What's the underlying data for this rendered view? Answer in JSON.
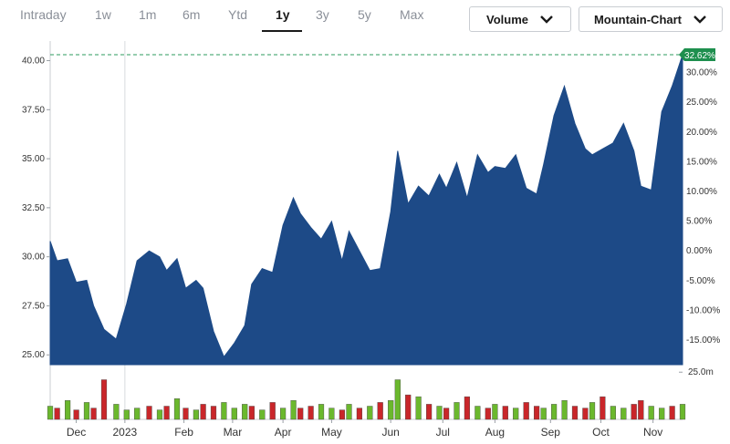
{
  "range_tabs": [
    {
      "label": "Intraday",
      "active": false
    },
    {
      "label": "1w",
      "active": false
    },
    {
      "label": "1m",
      "active": false
    },
    {
      "label": "6m",
      "active": false
    },
    {
      "label": "Ytd",
      "active": false
    },
    {
      "label": "1y",
      "active": true
    },
    {
      "label": "3y",
      "active": false
    },
    {
      "label": "5y",
      "active": false
    },
    {
      "label": "Max",
      "active": false
    }
  ],
  "controls": {
    "volume_label": "Volume",
    "chart_type_label": "Mountain-Chart",
    "chevron_icon": "chevron-down-icon"
  },
  "colors": {
    "area": "#1d4a87",
    "volume_up": "#6bb82d",
    "volume_down": "#c9262a",
    "badge": "#1e8f4e",
    "reference_line": "#2e9b5d"
  },
  "chart_data": {
    "type": "area",
    "x": [
      "2022-11-21",
      "2022-11-25",
      "2022-12-01",
      "2022-12-06",
      "2022-12-12",
      "2022-12-16",
      "2022-12-22",
      "2022-12-29",
      "2023-01-04",
      "2023-01-10",
      "2023-01-17",
      "2023-01-23",
      "2023-01-27",
      "2023-02-02",
      "2023-02-07",
      "2023-02-13",
      "2023-02-17",
      "2023-02-23",
      "2023-03-01",
      "2023-03-07",
      "2023-03-13",
      "2023-03-17",
      "2023-03-23",
      "2023-03-29",
      "2023-04-04",
      "2023-04-10",
      "2023-04-14",
      "2023-04-20",
      "2023-04-26",
      "2023-05-02",
      "2023-05-08",
      "2023-05-12",
      "2023-05-18",
      "2023-05-24",
      "2023-05-30",
      "2023-06-05",
      "2023-06-09",
      "2023-06-15",
      "2023-06-21",
      "2023-06-27",
      "2023-07-03",
      "2023-07-07",
      "2023-07-13",
      "2023-07-19",
      "2023-07-25",
      "2023-07-31",
      "2023-08-04",
      "2023-08-10",
      "2023-08-16",
      "2023-08-22",
      "2023-08-28",
      "2023-09-01",
      "2023-09-07",
      "2023-09-13",
      "2023-09-19",
      "2023-09-25",
      "2023-09-29",
      "2023-10-05",
      "2023-10-11",
      "2023-10-17",
      "2023-10-23",
      "2023-10-27",
      "2023-11-02",
      "2023-11-08",
      "2023-11-14",
      "2023-11-20"
    ],
    "values": [
      30.8,
      29.8,
      29.9,
      28.7,
      28.8,
      27.5,
      26.3,
      25.8,
      27.6,
      29.8,
      30.3,
      30.0,
      29.3,
      29.9,
      28.4,
      28.8,
      28.4,
      26.2,
      24.9,
      25.6,
      26.5,
      28.6,
      29.4,
      29.2,
      31.6,
      33.0,
      32.2,
      31.5,
      30.9,
      31.8,
      29.8,
      31.3,
      30.3,
      29.3,
      29.4,
      32.3,
      35.4,
      32.7,
      33.6,
      33.1,
      34.2,
      33.5,
      34.8,
      33.0,
      35.2,
      34.3,
      34.6,
      34.5,
      35.2,
      33.5,
      33.2,
      34.7,
      37.2,
      38.7,
      36.8,
      35.5,
      35.2,
      35.5,
      35.8,
      36.8,
      35.4,
      33.6,
      33.4,
      37.4,
      38.7,
      40.3
    ],
    "volume_millions": [
      7,
      6,
      10,
      5,
      9,
      6,
      21,
      8,
      5,
      6,
      7,
      5,
      7,
      11,
      6,
      5,
      8,
      7,
      9,
      6,
      8,
      7,
      5,
      9,
      6,
      10,
      6,
      7,
      8,
      6,
      5,
      8,
      6,
      7,
      9,
      10,
      21,
      13,
      12,
      8,
      7,
      6,
      9,
      12,
      7,
      6,
      8,
      7,
      6,
      9,
      7,
      6,
      8,
      10,
      7,
      6,
      9,
      12,
      7,
      6,
      8,
      10,
      7,
      6,
      7,
      8
    ],
    "volume_up": [
      true,
      false,
      true,
      false,
      true,
      false,
      false,
      true,
      true,
      true,
      false,
      true,
      false,
      true,
      false,
      true,
      false,
      false,
      true,
      true,
      true,
      false,
      true,
      false,
      true,
      true,
      false,
      false,
      true,
      true,
      false,
      true,
      false,
      true,
      false,
      true,
      true,
      false,
      true,
      false,
      true,
      false,
      true,
      false,
      true,
      false,
      true,
      false,
      true,
      false,
      false,
      true,
      true,
      true,
      false,
      false,
      true,
      false,
      true,
      true,
      false,
      false,
      true,
      true,
      false,
      true
    ],
    "ylim": [
      24.5,
      41.0
    ],
    "yticks": [
      "25.00",
      "27.50",
      "30.00",
      "32.50",
      "35.00",
      "37.50",
      "40.00"
    ],
    "yticks_values": [
      25.0,
      27.5,
      30.0,
      32.5,
      35.0,
      37.5,
      40.0
    ],
    "pct_ticks": [
      "-15.00%",
      "-10.00%",
      "-5.00%",
      "0.00%",
      "5.00%",
      "10.00%",
      "15.00%",
      "20.00%",
      "25.00%",
      "30.00%"
    ],
    "pct_ticks_values": [
      -15,
      -10,
      -5,
      0,
      5,
      10,
      15,
      20,
      25,
      30
    ],
    "pct_base": 30.3,
    "volume_tick": "25.0m",
    "volume_ylim": [
      0,
      28
    ],
    "xticks": [
      "Dec",
      "2023",
      "Feb",
      "Mar",
      "Apr",
      "May",
      "Jun",
      "Jul",
      "Aug",
      "Sep",
      "Oct",
      "Nov"
    ],
    "xtick_dates": [
      "2022-12-06",
      "2023-01-03",
      "2023-02-06",
      "2023-03-06",
      "2023-04-04",
      "2023-05-02",
      "2023-06-05",
      "2023-07-05",
      "2023-08-04",
      "2023-09-05",
      "2023-10-04",
      "2023-11-03"
    ],
    "last_change": "32.62%",
    "grid": false,
    "legend": "none"
  }
}
